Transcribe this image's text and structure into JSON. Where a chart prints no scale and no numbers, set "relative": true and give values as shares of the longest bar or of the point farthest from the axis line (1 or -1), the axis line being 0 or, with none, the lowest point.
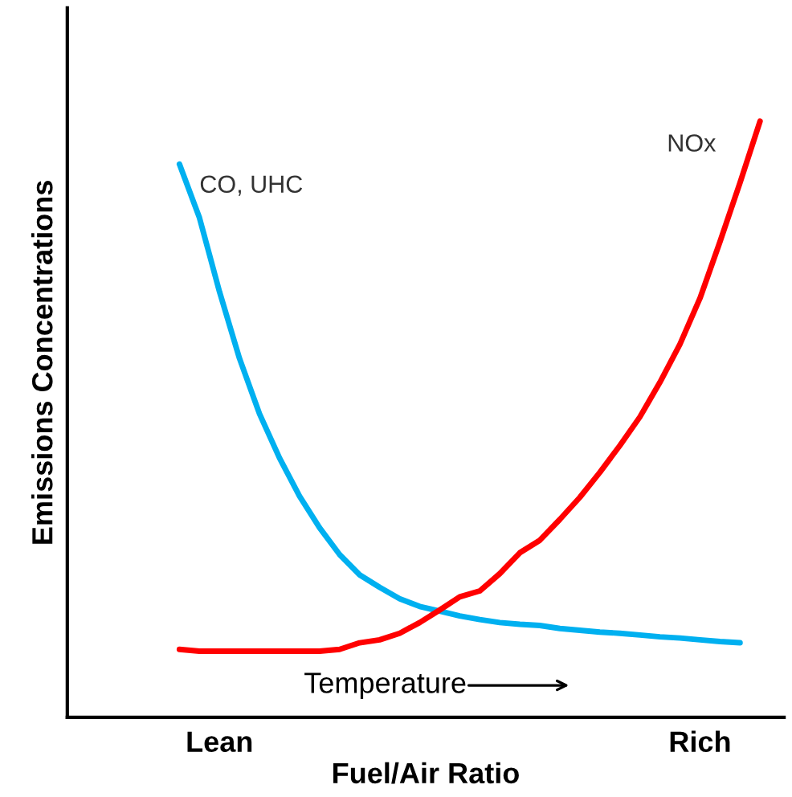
{
  "chart_data": {
    "type": "line",
    "relative": true,
    "xlabel": "Fuel/Air Ratio",
    "ylabel": "Emissions Concentrations",
    "categories": [
      null,
      null,
      "Lean",
      null,
      null,
      null,
      null,
      null,
      null,
      null,
      null,
      null,
      null,
      null,
      null,
      null,
      null,
      null,
      null,
      null,
      null,
      null,
      null,
      null,
      null,
      null,
      "Rich",
      null,
      null,
      null
    ],
    "grid": false,
    "legend": false,
    "marker": "none",
    "line_style": "solid",
    "annotations": [
      "Temperature"
    ],
    "series": [
      {
        "name": "CO, UHC",
        "color": "#00b0f0",
        "values": [
          0.928,
          0.838,
          0.714,
          0.602,
          0.509,
          0.435,
          0.371,
          0.318,
          0.273,
          0.239,
          0.218,
          0.199,
          0.186,
          0.178,
          0.17,
          0.164,
          0.159,
          0.156,
          0.154,
          0.149,
          0.146,
          0.143,
          0.141,
          0.138,
          0.135,
          0.133,
          0.13,
          0.127,
          0.125,
          null
        ]
      },
      {
        "name": "NOx",
        "color": "#ff0000",
        "values": [
          0.114,
          0.111,
          0.111,
          0.111,
          0.111,
          0.111,
          0.111,
          0.111,
          0.114,
          0.125,
          0.13,
          0.141,
          0.159,
          0.18,
          0.202,
          0.212,
          0.241,
          0.276,
          0.297,
          0.332,
          0.369,
          0.411,
          0.456,
          0.504,
          0.562,
          0.626,
          0.703,
          0.798,
          0.897,
          1.0
        ]
      }
    ]
  }
}
